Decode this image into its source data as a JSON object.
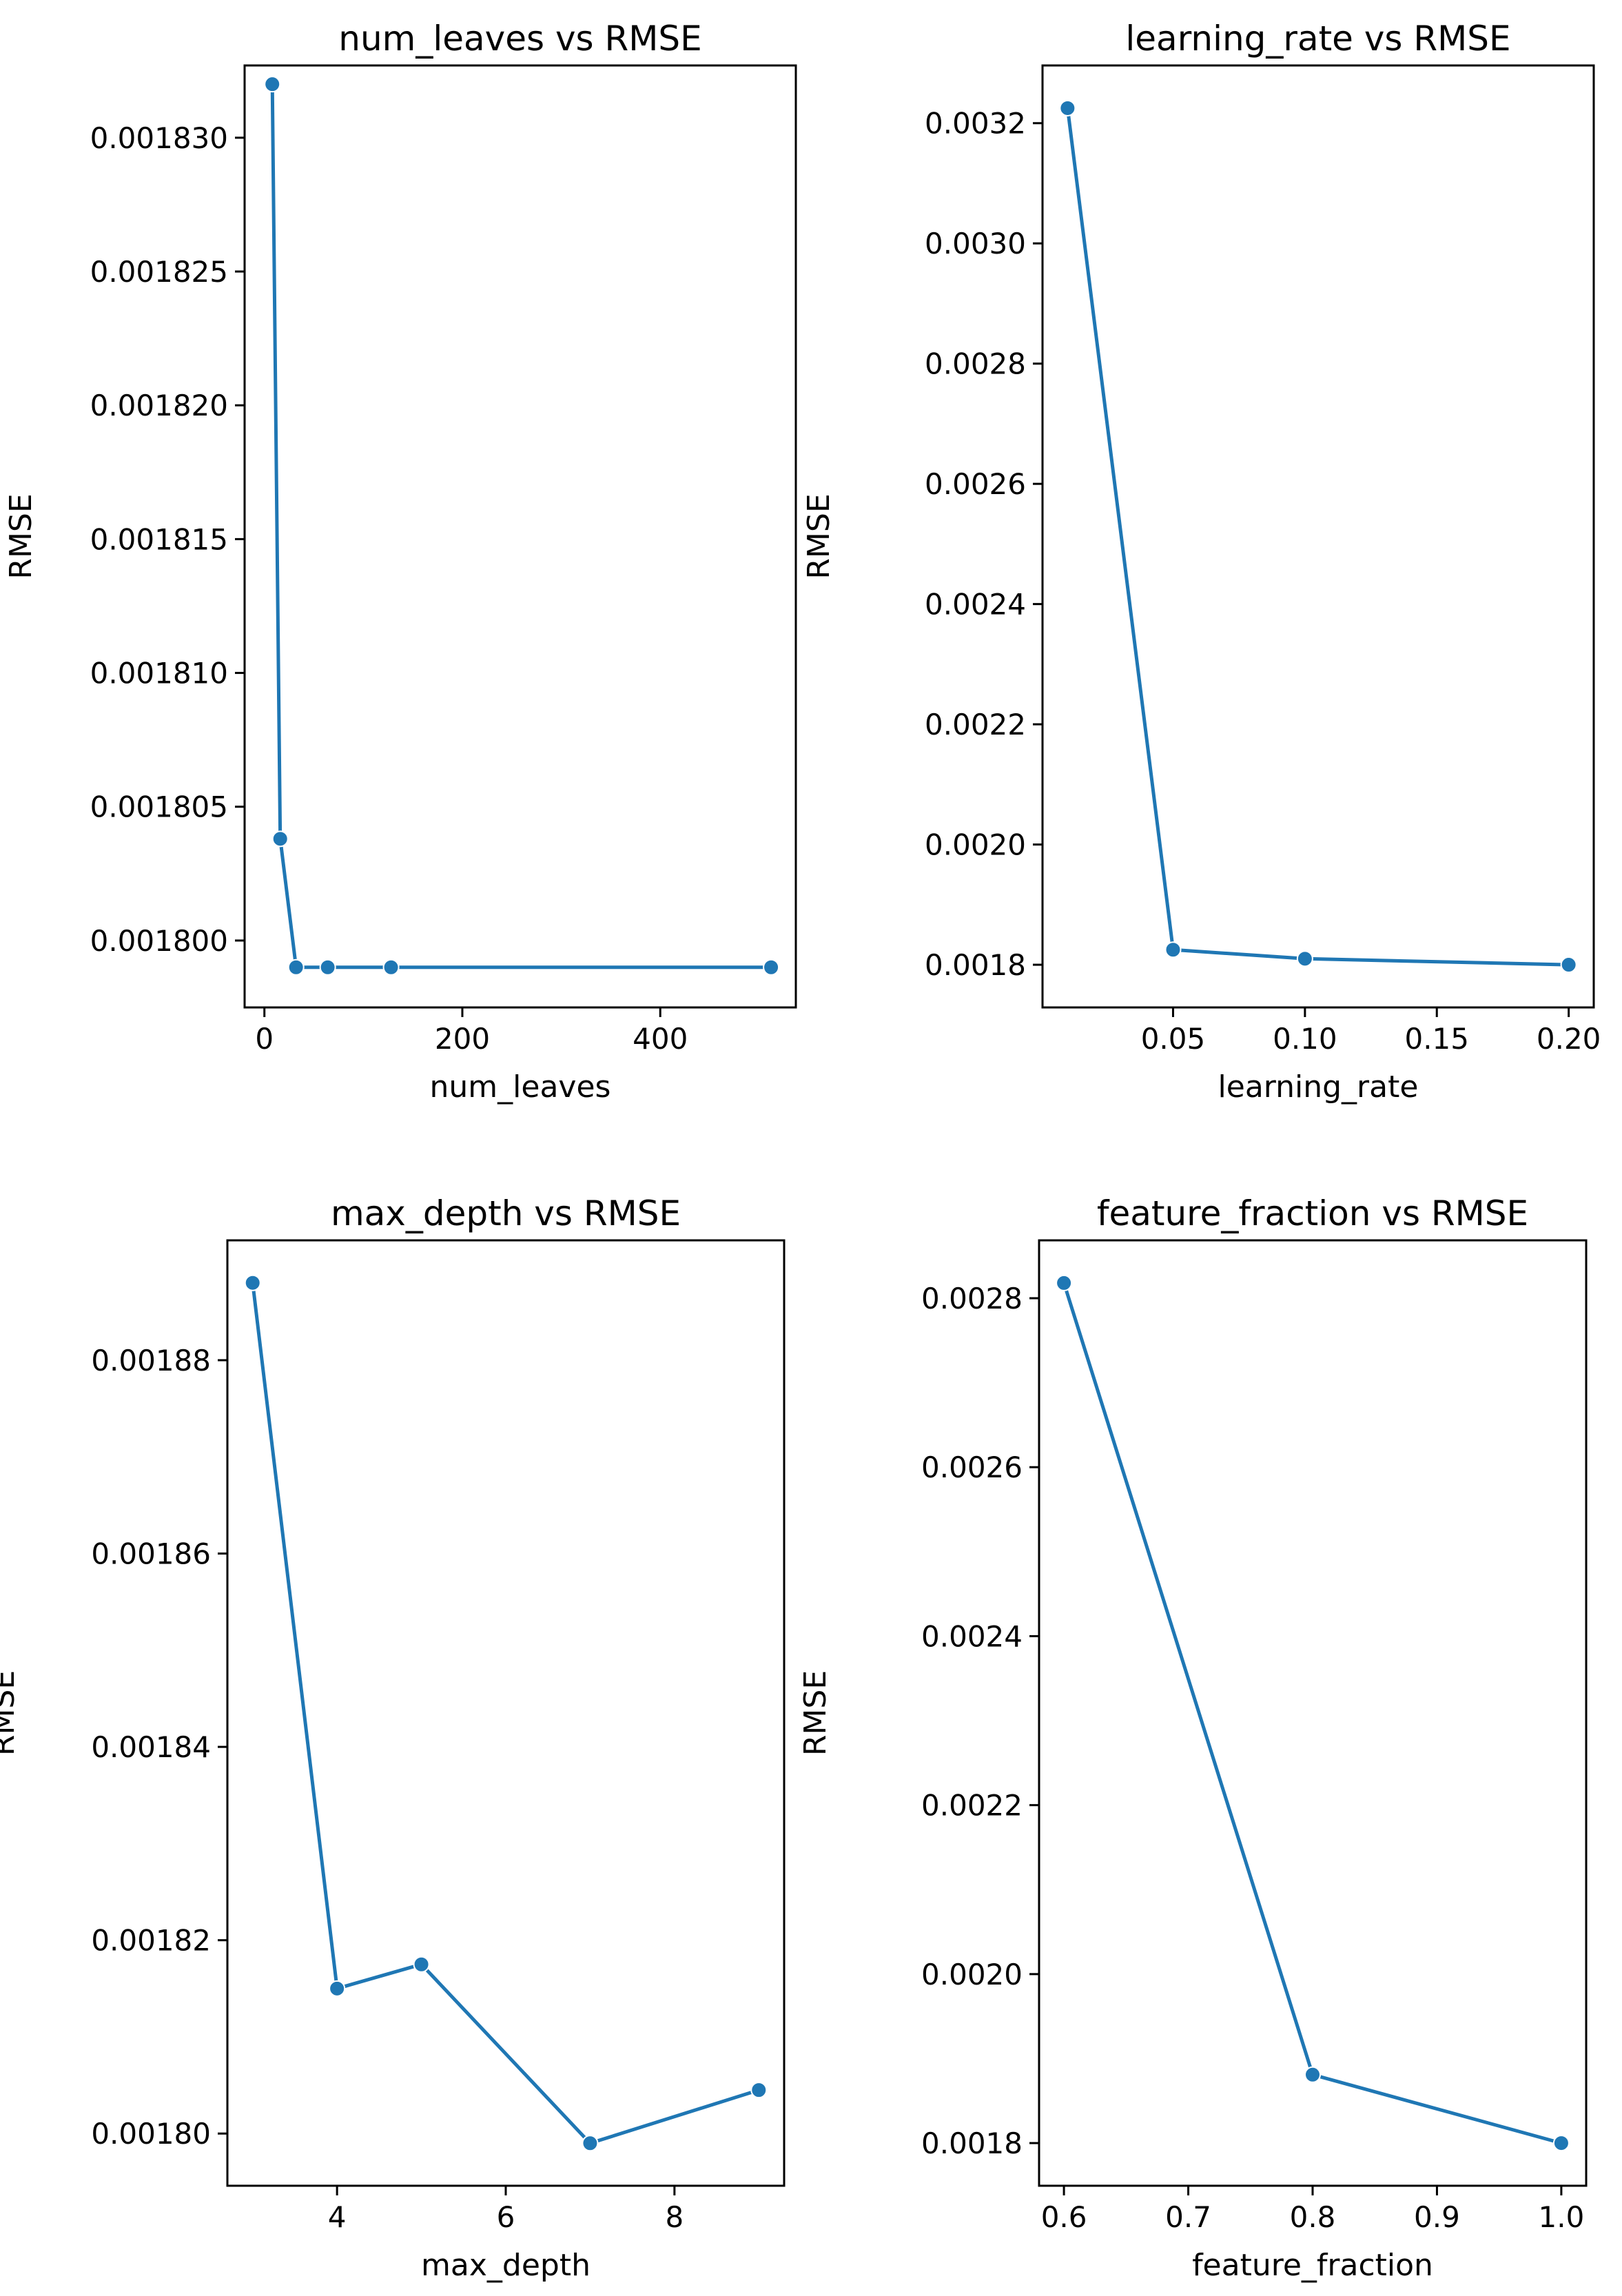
{
  "colors": {
    "series": "#1f77b4",
    "background": "#ffffff",
    "axes": "#000000"
  },
  "chart_data": [
    {
      "type": "line",
      "title": "num_leaves vs RMSE",
      "xlabel": "num_leaves",
      "ylabel": "RMSE",
      "x": [
        8,
        16,
        32,
        64,
        128,
        512
      ],
      "y": [
        0.001832,
        0.0018038,
        0.001799,
        0.001799,
        0.001799,
        0.001799
      ],
      "xlim": [
        -20,
        537
      ],
      "ylim": [
        0.0017975,
        0.0018327
      ],
      "xticks": [
        0,
        200,
        400
      ],
      "xtick_labels": [
        "0",
        "200",
        "400"
      ],
      "yticks": [
        0.0018,
        0.001805,
        0.00181,
        0.001815,
        0.00182,
        0.001825,
        0.00183
      ],
      "ytick_labels": [
        "0.001800",
        "0.001805",
        "0.001810",
        "0.001815",
        "0.001820",
        "0.001825",
        "0.001830"
      ],
      "grid": false,
      "marker": "circle"
    },
    {
      "type": "line",
      "title": "learning_rate vs RMSE",
      "xlabel": "learning_rate",
      "ylabel": "RMSE",
      "x": [
        0.01,
        0.05,
        0.1,
        0.2
      ],
      "y": [
        0.003225,
        0.001825,
        0.00181,
        0.0018
      ],
      "xlim": [
        0.0005,
        0.2095
      ],
      "ylim": [
        0.001729,
        0.003296
      ],
      "xticks": [
        0.05,
        0.1,
        0.15,
        0.2
      ],
      "xtick_labels": [
        "0.05",
        "0.10",
        "0.15",
        "0.20"
      ],
      "yticks": [
        0.0018,
        0.002,
        0.0022,
        0.0024,
        0.0026,
        0.0028,
        0.003,
        0.0032
      ],
      "ytick_labels": [
        "0.0018",
        "0.0020",
        "0.0022",
        "0.0024",
        "0.0026",
        "0.0028",
        "0.0030",
        "0.0032"
      ],
      "grid": false,
      "marker": "circle"
    },
    {
      "type": "line",
      "title": "max_depth vs RMSE",
      "xlabel": "max_depth",
      "ylabel": "RMSE",
      "x": [
        3,
        4,
        5,
        7,
        9
      ],
      "y": [
        0.001888,
        0.001815,
        0.0018175,
        0.001799,
        0.0018045
      ],
      "xlim": [
        2.7,
        9.3
      ],
      "ylim": [
        0.0017946,
        0.0018924
      ],
      "xticks": [
        4,
        6,
        8
      ],
      "xtick_labels": [
        "4",
        "6",
        "8"
      ],
      "yticks": [
        0.0018,
        0.00182,
        0.00184,
        0.00186,
        0.00188
      ],
      "ytick_labels": [
        "0.00180",
        "0.00182",
        "0.00184",
        "0.00186",
        "0.00188"
      ],
      "grid": false,
      "marker": "circle"
    },
    {
      "type": "line",
      "title": "feature_fraction vs RMSE",
      "xlabel": "feature_fraction",
      "ylabel": "RMSE",
      "x": [
        0.6,
        0.8,
        1.0
      ],
      "y": [
        0.002818,
        0.001881,
        0.0018
      ],
      "xlim": [
        0.58,
        1.02
      ],
      "ylim": [
        0.0017495,
        0.0028685
      ],
      "xticks": [
        0.6,
        0.7,
        0.8,
        0.9,
        1.0
      ],
      "xtick_labels": [
        "0.6",
        "0.7",
        "0.8",
        "0.9",
        "1.0"
      ],
      "yticks": [
        0.0018,
        0.002,
        0.0022,
        0.0024,
        0.0026,
        0.0028
      ],
      "ytick_labels": [
        "0.0018",
        "0.0020",
        "0.0022",
        "0.0024",
        "0.0026",
        "0.0028"
      ],
      "grid": false,
      "marker": "circle"
    }
  ]
}
